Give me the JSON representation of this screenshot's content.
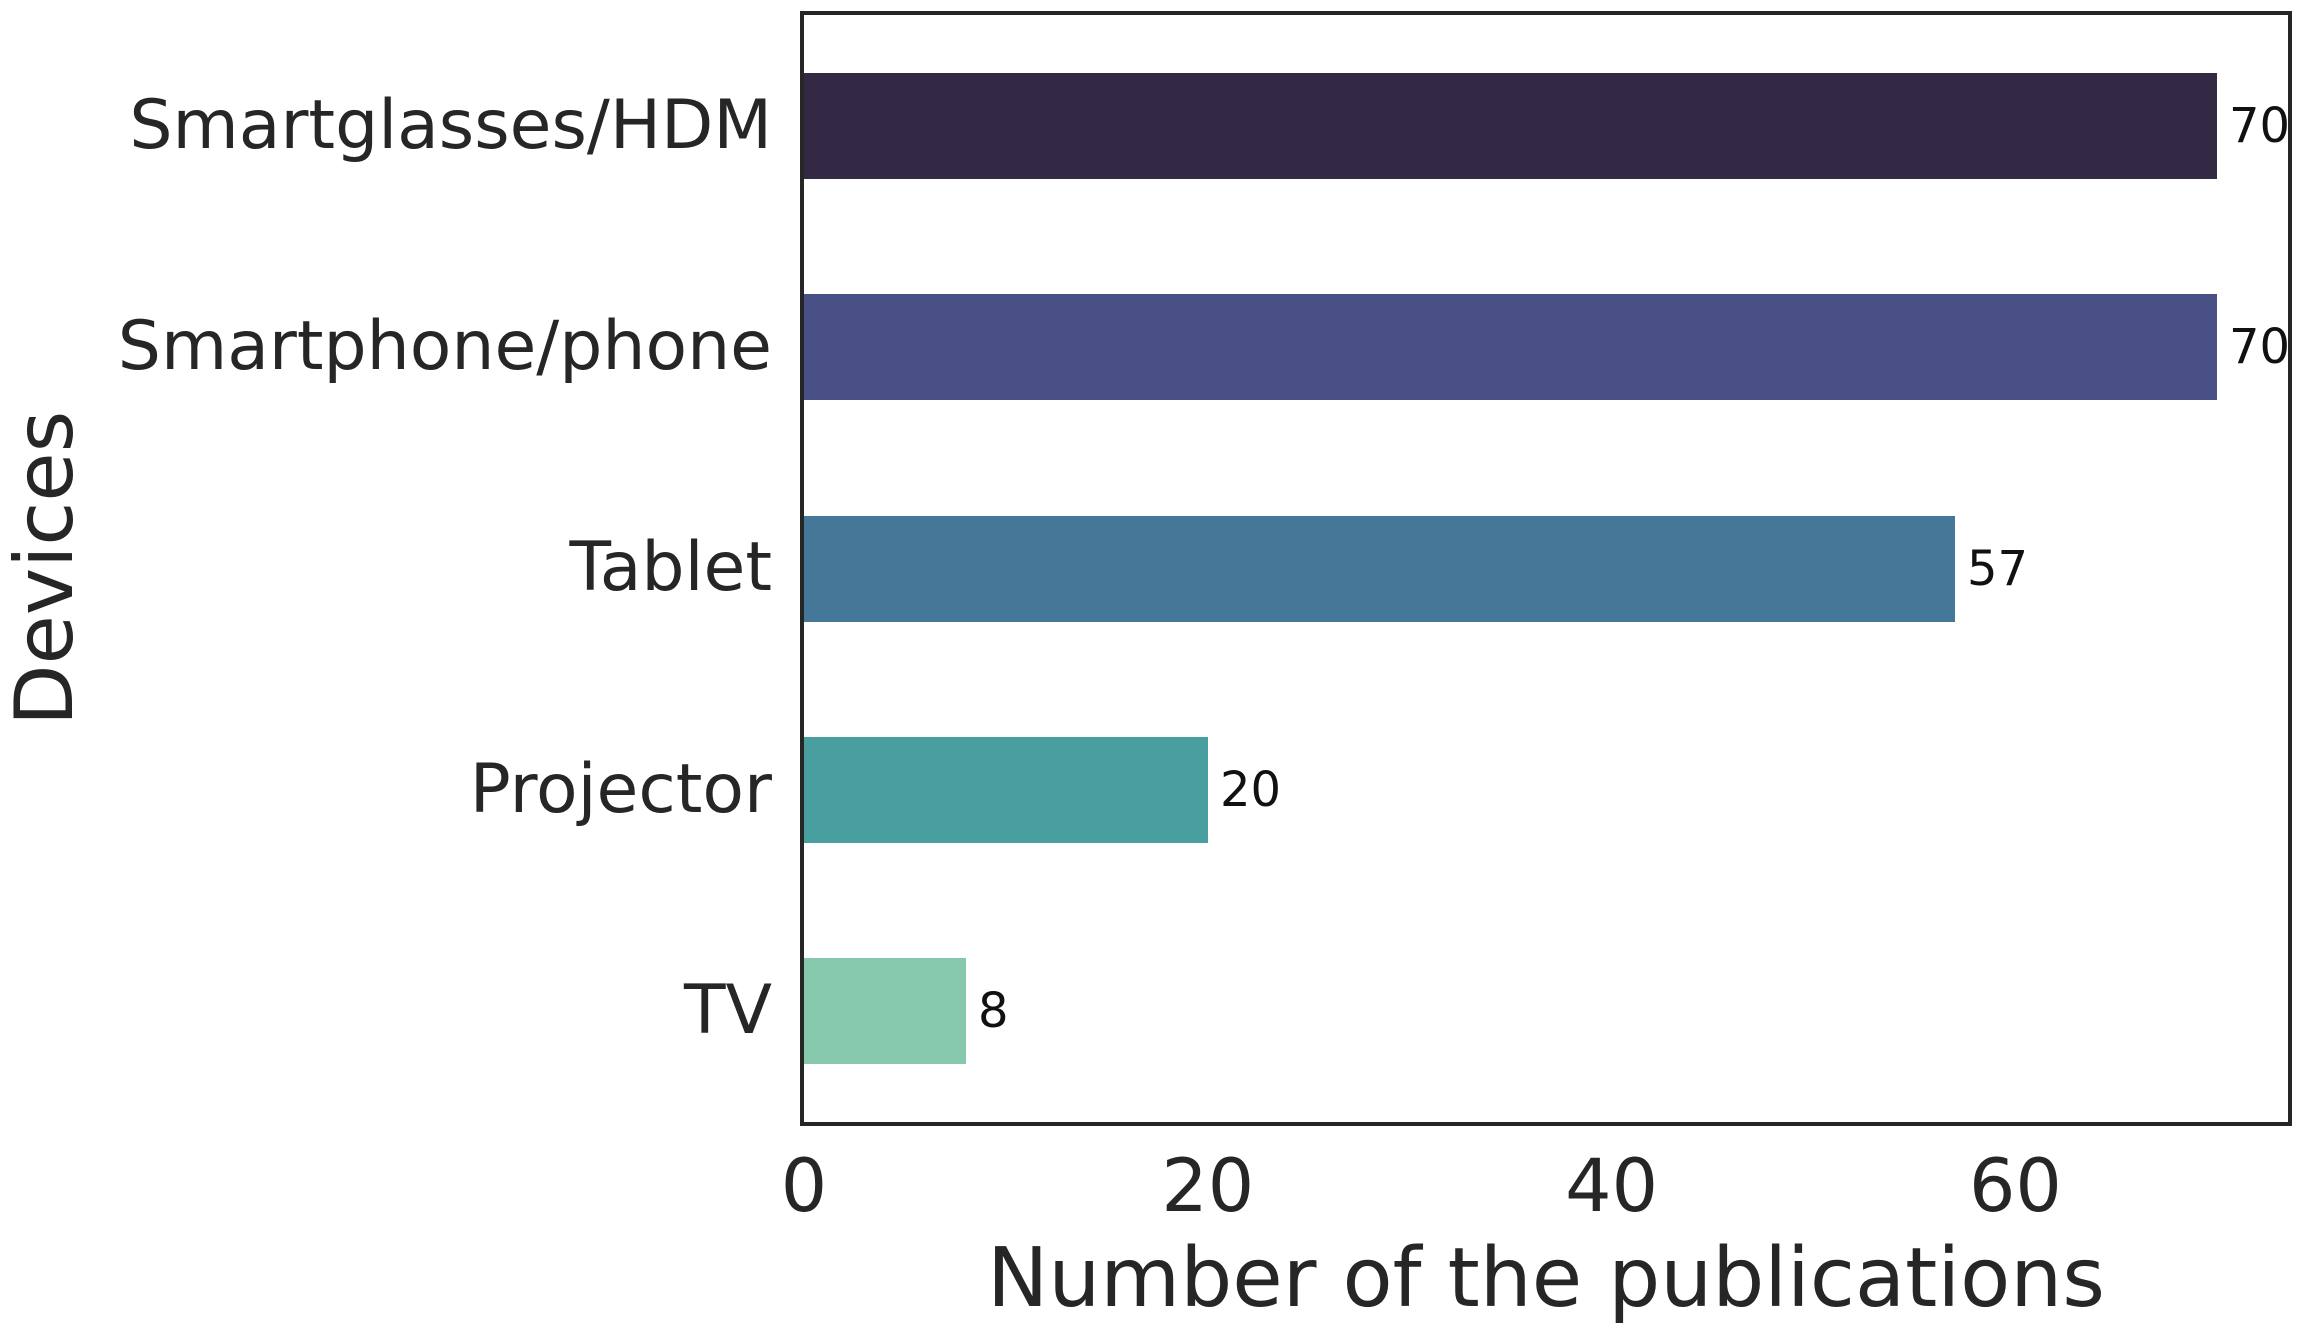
{
  "chart_data": {
    "type": "bar",
    "orientation": "horizontal",
    "title": "",
    "categories": [
      "Smartglasses/HDM",
      "Smartphone/phone",
      "Tablet",
      "Projector",
      "TV"
    ],
    "values": [
      70,
      70,
      57,
      20,
      8
    ],
    "value_labels": [
      "70",
      "70",
      "57",
      "20",
      "8"
    ],
    "bar_colors": [
      "#342945",
      "#495086",
      "#457798",
      "#499e9f",
      "#85c8ac"
    ],
    "xlabel": "Number of the publications",
    "ylabel": "Devices",
    "xticks": [
      0,
      20,
      40,
      60
    ],
    "xtick_labels": [
      "0",
      "20",
      "40",
      "60"
    ],
    "xlim": [
      0,
      73.5
    ],
    "grid": false,
    "legend": null
  },
  "colors": {
    "background": "#ffffff",
    "spine": "#262626",
    "text": "#262626",
    "value_label_text": "#111111"
  }
}
